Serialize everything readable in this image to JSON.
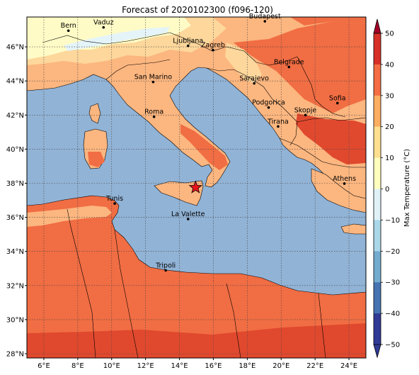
{
  "title": "Forecast of 2020102300 (f096-120)",
  "map": {
    "lon_range": [
      5,
      25
    ],
    "lat_range": [
      27.75,
      47.75
    ],
    "lon_ticks": [
      {
        "value": 6,
        "label": "6°E"
      },
      {
        "value": 8,
        "label": "8°E"
      },
      {
        "value": 10,
        "label": "10°E"
      },
      {
        "value": 12,
        "label": "12°E"
      },
      {
        "value": 14,
        "label": "14°E"
      },
      {
        "value": 16,
        "label": "16°E"
      },
      {
        "value": 18,
        "label": "18°E"
      },
      {
        "value": 20,
        "label": "20°E"
      },
      {
        "value": 22,
        "label": "22°E"
      },
      {
        "value": 24,
        "label": "24°E"
      }
    ],
    "lat_ticks": [
      {
        "value": 28,
        "label": "28°N"
      },
      {
        "value": 30,
        "label": "30°N"
      },
      {
        "value": 32,
        "label": "32°N"
      },
      {
        "value": 34,
        "label": "34°N"
      },
      {
        "value": 36,
        "label": "36°N"
      },
      {
        "value": 38,
        "label": "38°N"
      },
      {
        "value": 40,
        "label": "40°N"
      },
      {
        "value": 42,
        "label": "42°N"
      },
      {
        "value": 44,
        "label": "44°N"
      },
      {
        "value": 46,
        "label": "46°N"
      }
    ],
    "cities": [
      {
        "name": "Bern",
        "lon": 7.45,
        "lat": 46.95
      },
      {
        "name": "Vaduz",
        "lon": 9.52,
        "lat": 47.14
      },
      {
        "name": "Budapest",
        "lon": 19.04,
        "lat": 47.5
      },
      {
        "name": "Ljubljana",
        "lon": 14.51,
        "lat": 46.06
      },
      {
        "name": "Zagreb",
        "lon": 15.98,
        "lat": 45.81
      },
      {
        "name": "San Marino",
        "lon": 12.45,
        "lat": 43.94
      },
      {
        "name": "Sarajevo",
        "lon": 18.41,
        "lat": 43.86
      },
      {
        "name": "Belgrade",
        "lon": 20.46,
        "lat": 44.82
      },
      {
        "name": "Roma",
        "lon": 12.5,
        "lat": 41.9
      },
      {
        "name": "Podgorica",
        "lon": 19.26,
        "lat": 42.44
      },
      {
        "name": "Skopje",
        "lon": 21.43,
        "lat": 42.0
      },
      {
        "name": "Sofia",
        "lon": 23.32,
        "lat": 42.7
      },
      {
        "name": "Tirana",
        "lon": 19.82,
        "lat": 41.33
      },
      {
        "name": "Athens",
        "lon": 23.73,
        "lat": 37.98
      },
      {
        "name": "Tunis",
        "lon": 10.18,
        "lat": 36.81
      },
      {
        "name": "La Valette",
        "lon": 14.51,
        "lat": 35.9
      },
      {
        "name": "Tripoli",
        "lon": 13.19,
        "lat": 32.89
      }
    ],
    "marker": {
      "type": "star",
      "lon": 14.95,
      "lat": 37.75,
      "color": "#e8131b"
    },
    "colors": {
      "sea": "#91b3d6",
      "land_base": "#fcb67f",
      "warm": "#f16d43",
      "hot": "#e0492e",
      "cool": "#fdd79b",
      "cold": "#fffbc6",
      "frost": "#e4f4f8"
    }
  },
  "colorbar": {
    "label": "Max Temperature (°C)",
    "ticks": [
      "50",
      "40",
      "30",
      "20",
      "10",
      "0",
      "−10",
      "−20",
      "−30",
      "−40",
      "−50"
    ],
    "min": -50,
    "max": 50,
    "colors": [
      "#313a94",
      "#4674b3",
      "#74acd0",
      "#abd8e9",
      "#e0f2f7",
      "#fffebe",
      "#fee090",
      "#fdae61",
      "#f46d43",
      "#d63027",
      "#a50026"
    ]
  }
}
